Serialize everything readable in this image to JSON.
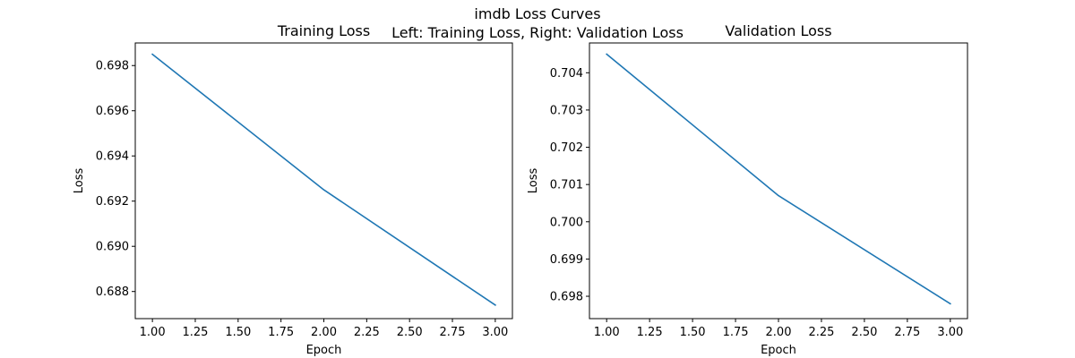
{
  "figure": {
    "suptitle_line1": "imdb Loss Curves",
    "suptitle_line2": "Left: Training Loss, Right: Validation Loss"
  },
  "colors": {
    "line": "#1f77b4",
    "axes": "#000000",
    "background": "#ffffff"
  },
  "chart_data": [
    {
      "type": "line",
      "title": "Training Loss",
      "xlabel": "Epoch",
      "ylabel": "Loss",
      "xlim": [
        0.9,
        3.1
      ],
      "ylim": [
        0.6868,
        0.699
      ],
      "xticks": [
        1.0,
        1.25,
        1.5,
        1.75,
        2.0,
        2.25,
        2.5,
        2.75,
        3.0
      ],
      "xtick_labels": [
        "1.00",
        "1.25",
        "1.50",
        "1.75",
        "2.00",
        "2.25",
        "2.50",
        "2.75",
        "3.00"
      ],
      "yticks": [
        0.688,
        0.69,
        0.692,
        0.694,
        0.696,
        0.698
      ],
      "ytick_labels": [
        "0.688",
        "0.690",
        "0.692",
        "0.694",
        "0.696",
        "0.698"
      ],
      "grid": false,
      "series": [
        {
          "x": [
            1,
            2,
            3
          ],
          "values": [
            0.6985,
            0.6925,
            0.6874
          ]
        }
      ]
    },
    {
      "type": "line",
      "title": "Validation Loss",
      "xlabel": "Epoch",
      "ylabel": "Loss",
      "xlim": [
        0.9,
        3.1
      ],
      "ylim": [
        0.6974,
        0.7048
      ],
      "xticks": [
        1.0,
        1.25,
        1.5,
        1.75,
        2.0,
        2.25,
        2.5,
        2.75,
        3.0
      ],
      "xtick_labels": [
        "1.00",
        "1.25",
        "1.50",
        "1.75",
        "2.00",
        "2.25",
        "2.50",
        "2.75",
        "3.00"
      ],
      "yticks": [
        0.698,
        0.699,
        0.7,
        0.701,
        0.702,
        0.703,
        0.704
      ],
      "ytick_labels": [
        "0.698",
        "0.699",
        "0.700",
        "0.701",
        "0.702",
        "0.703",
        "0.704"
      ],
      "grid": false,
      "series": [
        {
          "x": [
            1,
            2,
            3
          ],
          "values": [
            0.7045,
            0.7007,
            0.6978
          ]
        }
      ]
    }
  ]
}
